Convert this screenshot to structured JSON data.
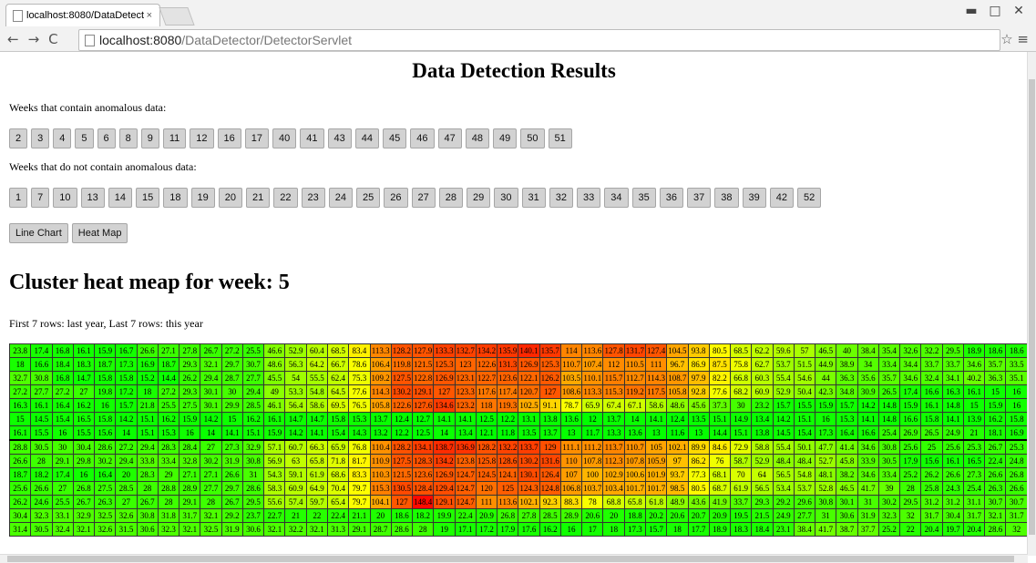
{
  "browser": {
    "tab_title": "localhost:8080/DataDetect",
    "url_host": "localhost:8080",
    "url_path": "/DataDetector/DetectorServlet"
  },
  "page": {
    "title": "Data Detection Results",
    "anomalous_label": "Weeks that contain anomalous data:",
    "anomalous_weeks": [
      2,
      3,
      4,
      5,
      6,
      8,
      9,
      11,
      12,
      16,
      17,
      40,
      41,
      43,
      44,
      45,
      46,
      47,
      48,
      49,
      50,
      51
    ],
    "normal_label": "Weeks that do not contain anomalous data:",
    "normal_weeks": [
      1,
      7,
      10,
      13,
      14,
      15,
      18,
      19,
      20,
      21,
      22,
      23,
      24,
      25,
      26,
      27,
      28,
      29,
      30,
      31,
      32,
      33,
      34,
      35,
      36,
      37,
      38,
      39,
      42,
      52
    ],
    "view_buttons": [
      "Line Chart",
      "Heat Map"
    ],
    "heatmap_title": "Cluster heat meap for week: 5",
    "heatmap_note": "First 7 rows: last year, Last 7 rows: this year"
  },
  "table": {
    "rows": [
      [
        23.8,
        17.4,
        16.8,
        16.1,
        15.9,
        16.7,
        26.6,
        27.1,
        27.8,
        26.7,
        27.2,
        25.5,
        46.6,
        52.9,
        60.4,
        68.5,
        83.4,
        113.3,
        128.2,
        127.9,
        133.3,
        132.7,
        134.2,
        135.9,
        140.1,
        135.7,
        114,
        113.6,
        127.8,
        131.7,
        127.4,
        104.5,
        93.8,
        80.5,
        68.5,
        62.2,
        59.6,
        57,
        46.5,
        40,
        38.4,
        35.4,
        32.6,
        32.2,
        29.5,
        18.9,
        18.6,
        18.6
      ],
      [
        18,
        16.6,
        18.4,
        18.3,
        18.7,
        17.3,
        16.9,
        18.7,
        29.3,
        32.1,
        29.7,
        30.7,
        48.6,
        56.3,
        64.2,
        66.7,
        78.6,
        106.4,
        119.8,
        121.5,
        125.3,
        123,
        122.6,
        131.3,
        126.9,
        125.3,
        110.7,
        107.4,
        112,
        110.5,
        111,
        96.7,
        86.9,
        87.5,
        75.8,
        62.7,
        53.7,
        51.5,
        44.9,
        38.9,
        34,
        33.4,
        34.4,
        33.7,
        33.7,
        34.6,
        35.7,
        33.5
      ],
      [
        32.7,
        30.8,
        16.8,
        14.7,
        15.8,
        15.8,
        15.2,
        14.4,
        26.2,
        29.4,
        28.7,
        27.7,
        45.5,
        54,
        55.5,
        62.4,
        75.3,
        109.2,
        127.5,
        122.8,
        126.9,
        123.1,
        122.7,
        123.6,
        122.1,
        126.2,
        103.5,
        110.1,
        115.7,
        112.7,
        114.3,
        108.7,
        97.9,
        82.2,
        66.8,
        60.3,
        55.4,
        54.6,
        44,
        36.3,
        35.6,
        35.7,
        34.6,
        32.4,
        34.1,
        40.2,
        36.3,
        35.1
      ],
      [
        27.2,
        27.7,
        27.2,
        27,
        19.8,
        17.2,
        18,
        27.2,
        29.3,
        30.1,
        30,
        29.4,
        49,
        53.3,
        54.8,
        64.5,
        77.6,
        114.3,
        130.2,
        129.1,
        127,
        123.3,
        117.6,
        117.4,
        120.7,
        127,
        108.6,
        113.3,
        115.3,
        119.2,
        117.5,
        105.8,
        92.8,
        77.6,
        68.2,
        60.9,
        52.9,
        50.4,
        42.3,
        34.8,
        30.9,
        26.5,
        17.4,
        16.6,
        16.3,
        16.1,
        15,
        16
      ],
      [
        16.3,
        16.1,
        16.4,
        16.2,
        16,
        15.7,
        21.8,
        25.5,
        27.5,
        30.1,
        29.9,
        28.5,
        46.1,
        56.4,
        58.6,
        69.5,
        76.5,
        105.8,
        122.6,
        127.6,
        134.6,
        123.2,
        118,
        119.3,
        102.5,
        91.1,
        78.7,
        65.9,
        67.4,
        67.1,
        58.6,
        48.6,
        45.6,
        37.3,
        30,
        23.2,
        15.7,
        15.5,
        15.9,
        15.7,
        14.2,
        14.8,
        15.9,
        16.1,
        14.8,
        15,
        15.9,
        16
      ],
      [
        15,
        14.5,
        15.4,
        16.5,
        15.8,
        14.2,
        15.1,
        16.2,
        15.9,
        14.2,
        15,
        16.2,
        16.1,
        14.7,
        14.7,
        15.8,
        15.3,
        13.7,
        12.4,
        12.7,
        14.1,
        14.1,
        12.5,
        12.2,
        13.1,
        13.8,
        13.6,
        12,
        13.7,
        14,
        14.1,
        12.4,
        13.5,
        15.1,
        14.9,
        13.4,
        14.2,
        15.1,
        16,
        15.3,
        14.1,
        14.8,
        16.6,
        15.8,
        14.1,
        13.9,
        16.2,
        15.8
      ],
      [
        16.1,
        15.5,
        16,
        15.5,
        15.6,
        14,
        15.1,
        15.3,
        16,
        14,
        14.1,
        15.1,
        15.9,
        14.2,
        14.1,
        15.4,
        14.3,
        13.2,
        12.2,
        12.5,
        14,
        13.4,
        12.1,
        11.8,
        13.5,
        13.7,
        13,
        11.7,
        13.3,
        13.6,
        13,
        11.6,
        13,
        14.4,
        15.1,
        13.8,
        14.5,
        15.4,
        17.3,
        16.4,
        16.6,
        25.4,
        26.9,
        26.5,
        24.9,
        21,
        18.1,
        16.9
      ],
      [
        28.8,
        30.5,
        30,
        30.4,
        28.6,
        27.2,
        29.4,
        28.3,
        28.4,
        27,
        27.3,
        32.9,
        57.1,
        60.7,
        66.3,
        65.9,
        76.8,
        110.4,
        128.2,
        134.1,
        138.7,
        136.9,
        128.2,
        132.2,
        133.7,
        129,
        111.1,
        111.2,
        113.7,
        110.7,
        105,
        102.1,
        89.9,
        84.6,
        72.9,
        58.8,
        55.4,
        50.1,
        47.7,
        41.4,
        34.6,
        30.8,
        25.6,
        25,
        25.6,
        25.3,
        26.7,
        25.3
      ],
      [
        26.6,
        28,
        29.1,
        29.8,
        30.2,
        29.4,
        33.8,
        33.4,
        32.8,
        30.2,
        31.9,
        30.8,
        56.9,
        63,
        65.8,
        71.8,
        81.7,
        110.9,
        127.5,
        128.3,
        134.2,
        123.8,
        125.8,
        128.6,
        130.2,
        131.6,
        110,
        107.8,
        112.3,
        107.8,
        105.9,
        97,
        86.2,
        76,
        58.7,
        52.9,
        48.4,
        48.4,
        52.7,
        45.8,
        33.9,
        30.5,
        17.9,
        15.6,
        16.1,
        16.5,
        22.4,
        24.8
      ],
      [
        18.7,
        18.2,
        17.4,
        16,
        16.4,
        20,
        28.3,
        29,
        27.1,
        27.1,
        26.6,
        31,
        54.3,
        59.1,
        61.9,
        68.6,
        83.3,
        110.3,
        121.5,
        123.6,
        126.9,
        124.7,
        124.5,
        124.1,
        130.1,
        126.4,
        107,
        100,
        102.9,
        100.6,
        101.9,
        93.7,
        77.3,
        68.1,
        70,
        64,
        56.5,
        54.8,
        48.1,
        38.2,
        34.6,
        33.4,
        25.2,
        26.2,
        26.6,
        27.3,
        26.6,
        26.8
      ],
      [
        25.6,
        26.6,
        27,
        26.8,
        27.5,
        28.5,
        28,
        28.8,
        28.9,
        27.7,
        29.7,
        28.6,
        58.3,
        60.9,
        64.9,
        70.4,
        79.7,
        115.3,
        130.5,
        128.4,
        129.4,
        124.7,
        120,
        125,
        124.3,
        124.8,
        106.8,
        103.7,
        103.4,
        101.7,
        101.7,
        98.5,
        80.5,
        68.7,
        61.9,
        56.5,
        53.4,
        53.7,
        52.8,
        46.5,
        41.7,
        39,
        28,
        25.8,
        24.3,
        25.4,
        26.3,
        26.6
      ],
      [
        26.2,
        24.6,
        25.5,
        26.7,
        26.3,
        27,
        26.7,
        28,
        29.1,
        28,
        26.7,
        29.5,
        55.6,
        57.4,
        59.7,
        65.4,
        79.7,
        104.1,
        127,
        148.4,
        129.1,
        124.7,
        111,
        113.6,
        102.1,
        92.3,
        88.3,
        78,
        68.8,
        65.8,
        61.8,
        48.9,
        43.6,
        41.9,
        33.7,
        29.3,
        29.2,
        29.6,
        30.8,
        30.1,
        31,
        30.2,
        29.5,
        31.2,
        31.2,
        31.1,
        30.7,
        30.7
      ],
      [
        30.4,
        32.3,
        33.1,
        32.9,
        32.5,
        32.6,
        30.8,
        31.8,
        31.7,
        32.1,
        29.2,
        23.7,
        22.7,
        21,
        22,
        22.4,
        21.1,
        20,
        18.6,
        18.2,
        19.9,
        22.4,
        20.9,
        26.8,
        27.8,
        28.5,
        28.9,
        20.6,
        20,
        18.8,
        20.2,
        20.6,
        20.7,
        20.9,
        19.5,
        21.5,
        24.9,
        27.7,
        31,
        30.6,
        31.9,
        32.3,
        32,
        31.7,
        30.4,
        31.7,
        32.1,
        31.7
      ],
      [
        31.4,
        30.5,
        32.4,
        32.1,
        32.6,
        31.5,
        30.6,
        32.3,
        32.1,
        32.5,
        31.9,
        30.6,
        32.1,
        32.2,
        32.1,
        31.3,
        29.1,
        28.7,
        28.6,
        28,
        19,
        17.1,
        17.2,
        17.9,
        17.6,
        16.2,
        16,
        17,
        18,
        17.3,
        15.7,
        18,
        17.7,
        18.9,
        18.3,
        18.4,
        23.1,
        38.4,
        41.7,
        38.7,
        37.7,
        25.2,
        22,
        20.4,
        19.7,
        20.4,
        28.6,
        32
      ]
    ]
  }
}
